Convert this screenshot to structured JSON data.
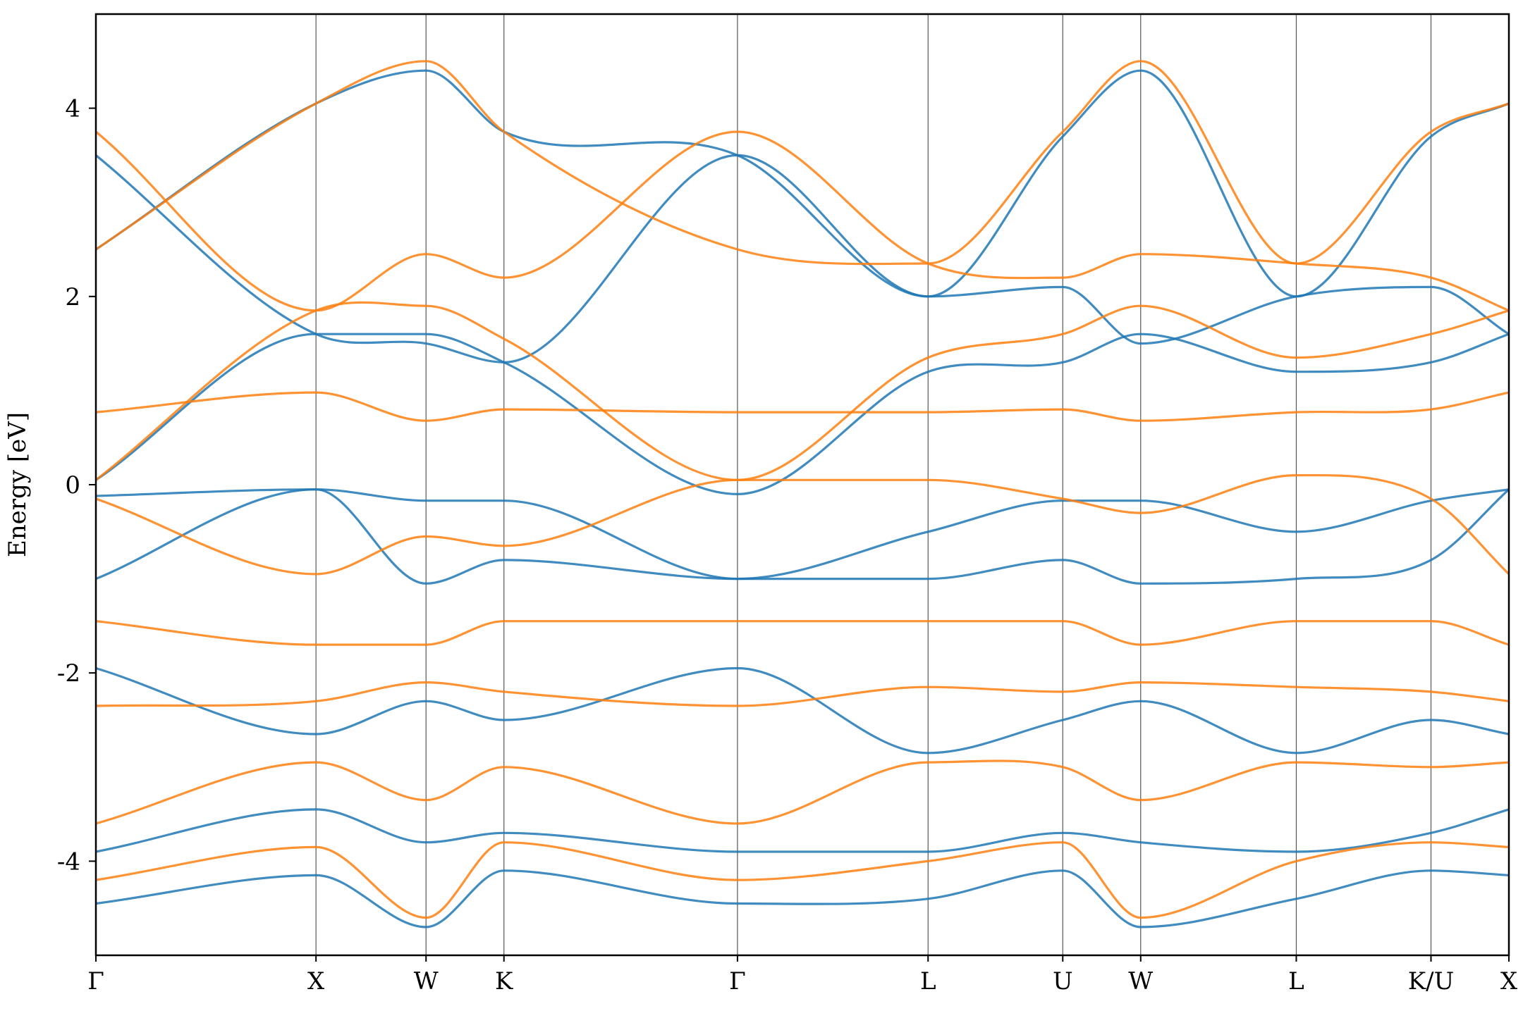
{
  "chart_data": {
    "type": "line",
    "title": "",
    "xlabel": "",
    "ylabel": "Energy [eV]",
    "ylim": [
      -5,
      5
    ],
    "y_ticks": [
      4,
      2,
      0,
      -2,
      -4
    ],
    "y_tick_labels": [
      "4",
      "2",
      "0",
      "-2",
      "-4"
    ],
    "high_symmetry_points": [
      {
        "label": "Γ",
        "x": 0.0
      },
      {
        "label": "X",
        "x": 1.0
      },
      {
        "label": "W",
        "x": 1.5
      },
      {
        "label": "K",
        "x": 1.854
      },
      {
        "label": "Γ",
        "x": 2.915
      },
      {
        "label": "L",
        "x": 3.781
      },
      {
        "label": "U",
        "x": 4.393
      },
      {
        "label": "W",
        "x": 4.747
      },
      {
        "label": "L",
        "x": 5.454
      },
      {
        "label": "K/U",
        "x": 6.066
      },
      {
        "label": "X",
        "x": 6.42
      }
    ],
    "grid": false,
    "colors": {
      "blue": "#1f77b4",
      "orange": "#ff7f0e"
    },
    "series": [
      {
        "color": "#1f77b4",
        "bands": [
          {
            "x": [
              0,
              1.0,
              1.5,
              1.854,
              2.915,
              3.781,
              4.393,
              4.747,
              5.454,
              6.066,
              6.42
            ],
            "y": [
              -0.12,
              -0.05,
              -0.17,
              -0.17,
              -1.0,
              -0.5,
              -0.17,
              -0.17,
              -0.5,
              -0.17,
              -0.05
            ]
          },
          {
            "x": [
              0,
              1.0,
              1.5,
              1.854,
              2.915,
              3.781,
              4.393,
              4.747,
              5.454,
              6.066,
              6.42
            ],
            "y": [
              -1.0,
              -0.05,
              -1.05,
              -0.8,
              -1.0,
              -1.0,
              -0.8,
              -1.05,
              -1.0,
              -0.8,
              -0.05
            ]
          },
          {
            "x": [
              0,
              1.0,
              1.5,
              1.854,
              2.915,
              3.781,
              4.393,
              4.747,
              5.454,
              6.066,
              6.42
            ],
            "y": [
              0.05,
              1.6,
              1.6,
              1.3,
              -0.1,
              1.2,
              1.3,
              1.6,
              1.2,
              1.3,
              1.6
            ]
          },
          {
            "x": [
              0,
              1.0,
              1.5,
              1.854,
              2.915,
              3.781,
              4.393,
              4.747,
              5.454,
              6.066,
              6.42
            ],
            "y": [
              3.5,
              1.6,
              1.5,
              1.3,
              3.5,
              2.0,
              2.1,
              1.5,
              2.0,
              2.1,
              1.6
            ]
          },
          {
            "x": [
              0,
              1.0,
              1.5,
              1.854,
              2.915,
              3.781,
              4.393,
              4.747,
              5.454,
              6.066,
              6.42
            ],
            "y": [
              2.5,
              4.05,
              4.4,
              3.75,
              3.5,
              2.0,
              3.7,
              4.4,
              2.0,
              3.7,
              4.05
            ]
          },
          {
            "x": [
              0,
              1.0,
              1.5,
              1.854,
              2.915,
              3.781,
              4.393,
              4.747,
              5.454,
              6.066,
              6.42
            ],
            "y": [
              -1.95,
              -2.65,
              -2.3,
              -2.5,
              -1.95,
              -2.85,
              -2.5,
              -2.3,
              -2.85,
              -2.5,
              -2.65
            ]
          },
          {
            "x": [
              0,
              1.0,
              1.5,
              1.854,
              2.915,
              3.781,
              4.393,
              4.747,
              5.454,
              6.066,
              6.42
            ],
            "y": [
              -3.9,
              -3.45,
              -3.8,
              -3.7,
              -3.9,
              -3.9,
              -3.7,
              -3.8,
              -3.9,
              -3.7,
              -3.45
            ]
          },
          {
            "x": [
              0,
              1.0,
              1.5,
              1.854,
              2.915,
              3.781,
              4.393,
              4.747,
              5.454,
              6.066,
              6.42
            ],
            "y": [
              -4.45,
              -4.15,
              -4.7,
              -4.1,
              -4.45,
              -4.4,
              -4.1,
              -4.7,
              -4.4,
              -4.1,
              -4.15
            ]
          }
        ]
      },
      {
        "color": "#ff7f0e",
        "bands": [
          {
            "x": [
              0,
              1.0,
              1.5,
              1.854,
              2.915,
              3.781,
              4.393,
              4.747,
              5.454,
              6.066,
              6.42
            ],
            "y": [
              0.77,
              0.98,
              0.68,
              0.8,
              0.77,
              0.77,
              0.8,
              0.68,
              0.77,
              0.8,
              0.98
            ]
          },
          {
            "x": [
              0,
              1.0,
              1.5,
              1.854,
              2.915,
              3.781,
              4.393,
              4.747,
              5.454,
              6.066,
              6.42
            ],
            "y": [
              0.05,
              1.85,
              1.9,
              1.55,
              0.05,
              1.35,
              1.6,
              1.9,
              1.35,
              1.6,
              1.85
            ]
          },
          {
            "x": [
              0,
              1.0,
              1.5,
              1.854,
              2.915,
              3.781,
              4.393,
              4.747,
              5.454,
              6.066,
              6.42
            ],
            "y": [
              3.75,
              1.85,
              2.45,
              2.2,
              3.75,
              2.35,
              2.2,
              2.45,
              2.35,
              2.2,
              1.85
            ]
          },
          {
            "x": [
              0,
              1.0,
              1.5,
              1.854,
              2.915,
              3.781,
              4.393,
              4.747,
              5.454,
              6.066,
              6.42
            ],
            "y": [
              2.5,
              4.05,
              4.5,
              3.75,
              2.5,
              2.35,
              3.75,
              4.5,
              2.35,
              3.75,
              4.05
            ]
          },
          {
            "x": [
              0,
              1.0,
              1.5,
              1.854,
              2.915,
              3.781,
              4.393,
              4.747,
              5.454,
              6.066,
              6.42
            ],
            "y": [
              -0.15,
              -0.95,
              -0.55,
              -0.65,
              0.05,
              0.05,
              -0.15,
              -0.3,
              0.1,
              -0.15,
              -0.95
            ]
          },
          {
            "x": [
              0,
              1.0,
              1.5,
              1.854,
              2.915,
              3.781,
              4.393,
              4.747,
              5.454,
              6.066,
              6.42
            ],
            "y": [
              -1.45,
              -1.7,
              -1.7,
              -1.45,
              -1.45,
              -1.45,
              -1.45,
              -1.7,
              -1.45,
              -1.45,
              -1.7
            ]
          },
          {
            "x": [
              0,
              1.0,
              1.5,
              1.854,
              2.915,
              3.781,
              4.393,
              4.747,
              5.454,
              6.066,
              6.42
            ],
            "y": [
              -2.35,
              -2.3,
              -2.1,
              -2.2,
              -2.35,
              -2.15,
              -2.2,
              -2.1,
              -2.15,
              -2.2,
              -2.3
            ]
          },
          {
            "x": [
              0,
              1.0,
              1.5,
              1.854,
              2.915,
              3.781,
              4.393,
              4.747,
              5.454,
              6.066,
              6.42
            ],
            "y": [
              -3.6,
              -2.95,
              -3.35,
              -3.0,
              -3.6,
              -2.95,
              -3.0,
              -3.35,
              -2.95,
              -3.0,
              -2.95
            ]
          },
          {
            "x": [
              0,
              1.0,
              1.5,
              1.854,
              2.915,
              3.781,
              4.393,
              4.747,
              5.454,
              6.066,
              6.42
            ],
            "y": [
              -4.2,
              -3.85,
              -4.6,
              -3.8,
              -4.2,
              -4.0,
              -3.8,
              -4.6,
              -4.0,
              -3.8,
              -3.85
            ]
          }
        ]
      }
    ]
  }
}
